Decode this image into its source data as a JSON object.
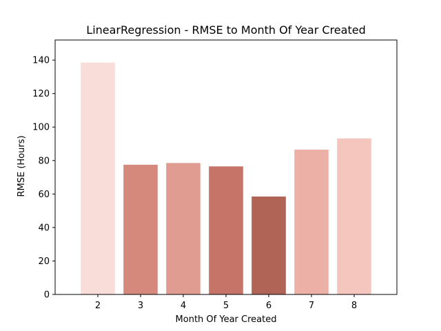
{
  "chart_data": {
    "type": "bar",
    "title": "LinearRegression - RMSE to Month Of Year Created",
    "xlabel": "Month Of Year Created",
    "ylabel": "RMSE (Hours)",
    "categories": [
      "2",
      "3",
      "4",
      "5",
      "6",
      "7",
      "8"
    ],
    "values": [
      138.5,
      77.5,
      78.5,
      76.5,
      58.5,
      86.5,
      93.2
    ],
    "bar_colors": [
      "#f9ddd8",
      "#d4897c",
      "#e09c90",
      "#c57467",
      "#b06456",
      "#edb0a6",
      "#f5c6be"
    ],
    "ylim": [
      0,
      152
    ],
    "yticks": [
      0,
      20,
      40,
      60,
      80,
      100,
      120,
      140
    ],
    "grid": false,
    "legend": "none"
  }
}
